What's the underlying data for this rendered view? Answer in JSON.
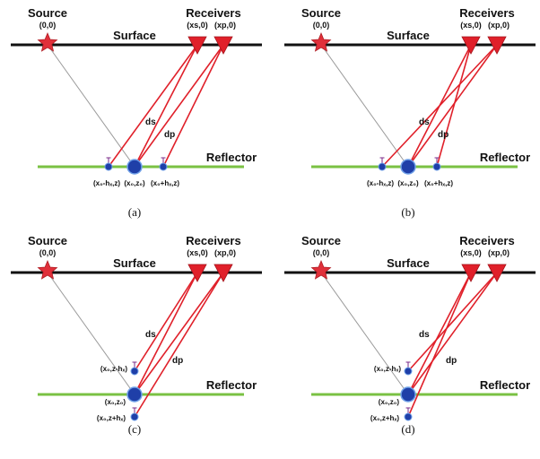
{
  "labels": {
    "source": "Source",
    "source_coord": "(0,0)",
    "surface": "Surface",
    "receivers": "Receivers",
    "xs_coord": "(xs,0)",
    "xp_coord": "(xp,0)",
    "reflector": "Reflector",
    "ds": "ds",
    "dp": "dp"
  },
  "panels": [
    {
      "caption": "(a)",
      "points": [
        "(x₀-hₓ,z)",
        "(x₀,z₀)",
        "(x₀+hₓ,z)"
      ]
    },
    {
      "caption": "(b)",
      "points": [
        "(x₀-hₓ,z)",
        "(x₀,z₀)",
        "(x₀+hₓ,z)"
      ]
    },
    {
      "caption": "(c)",
      "points": [
        "(x₀,z-hₓ)",
        "(x₀,z₀)",
        "(x₀,z+hₓ)"
      ]
    },
    {
      "caption": "(d)",
      "points": [
        "(x₀,z-hₓ)",
        "(x₀,z₀)",
        "(x₀,z+hₓ)"
      ]
    }
  ],
  "colors": {
    "surface": "#111111",
    "reflector": "#7ac143",
    "rays": "#e0202a",
    "source_ray": "#9a9a9a",
    "star": "#e0303a",
    "receiver": "#e0202a",
    "point_fill": "#1f3fa8",
    "point_stroke": "#6fa0e8"
  }
}
